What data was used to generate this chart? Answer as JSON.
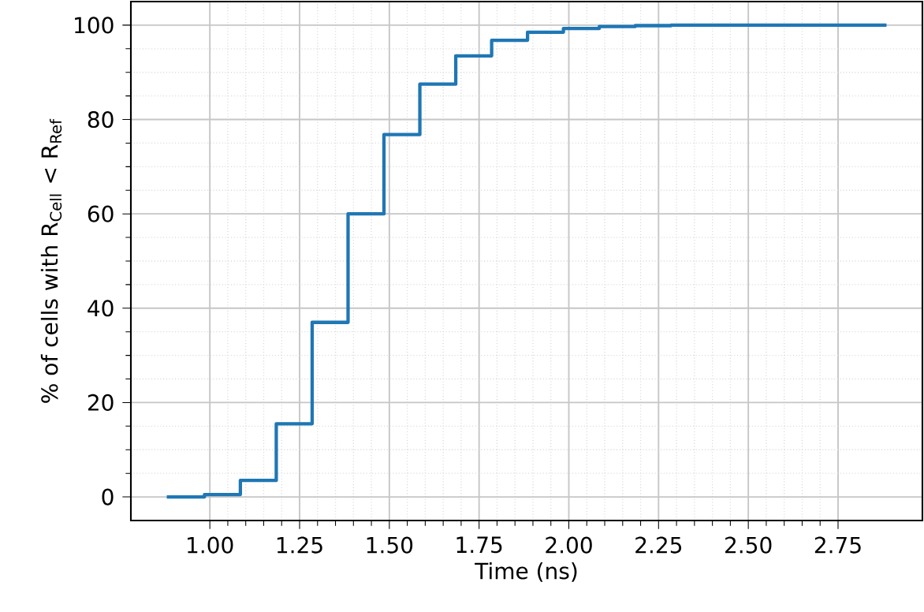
{
  "chart_data": {
    "type": "step",
    "xlabel": "Time (ns)",
    "ylabel": "% of cells with R$_{Cell}$ < R$_{Ref}$",
    "x": [
      0.88,
      0.985,
      1.085,
      1.185,
      1.285,
      1.385,
      1.485,
      1.585,
      1.685,
      1.785,
      1.885,
      1.985,
      2.085,
      2.185,
      2.285,
      2.885
    ],
    "series": [
      {
        "color": "#1f77b4",
        "values": [
          0,
          0.5,
          3.5,
          15.5,
          37,
          60,
          76.8,
          87.5,
          93.5,
          96.8,
          98.5,
          99.3,
          99.7,
          99.9,
          100,
          100
        ]
      }
    ],
    "xlim": [
      0.78,
      2.985
    ],
    "ylim": [
      -5,
      105
    ],
    "xticks": [
      {
        "value": 1.0,
        "label": "1.00"
      },
      {
        "value": 1.25,
        "label": "1.25"
      },
      {
        "value": 1.5,
        "label": "1.50"
      },
      {
        "value": 1.75,
        "label": "1.75"
      },
      {
        "value": 2.0,
        "label": "2.00"
      },
      {
        "value": 2.25,
        "label": "2.25"
      },
      {
        "value": 2.5,
        "label": "2.50"
      },
      {
        "value": 2.75,
        "label": "2.75"
      }
    ],
    "yticks": [
      0,
      20,
      40,
      60,
      80,
      100
    ],
    "grid": true,
    "line_style": "solid"
  }
}
